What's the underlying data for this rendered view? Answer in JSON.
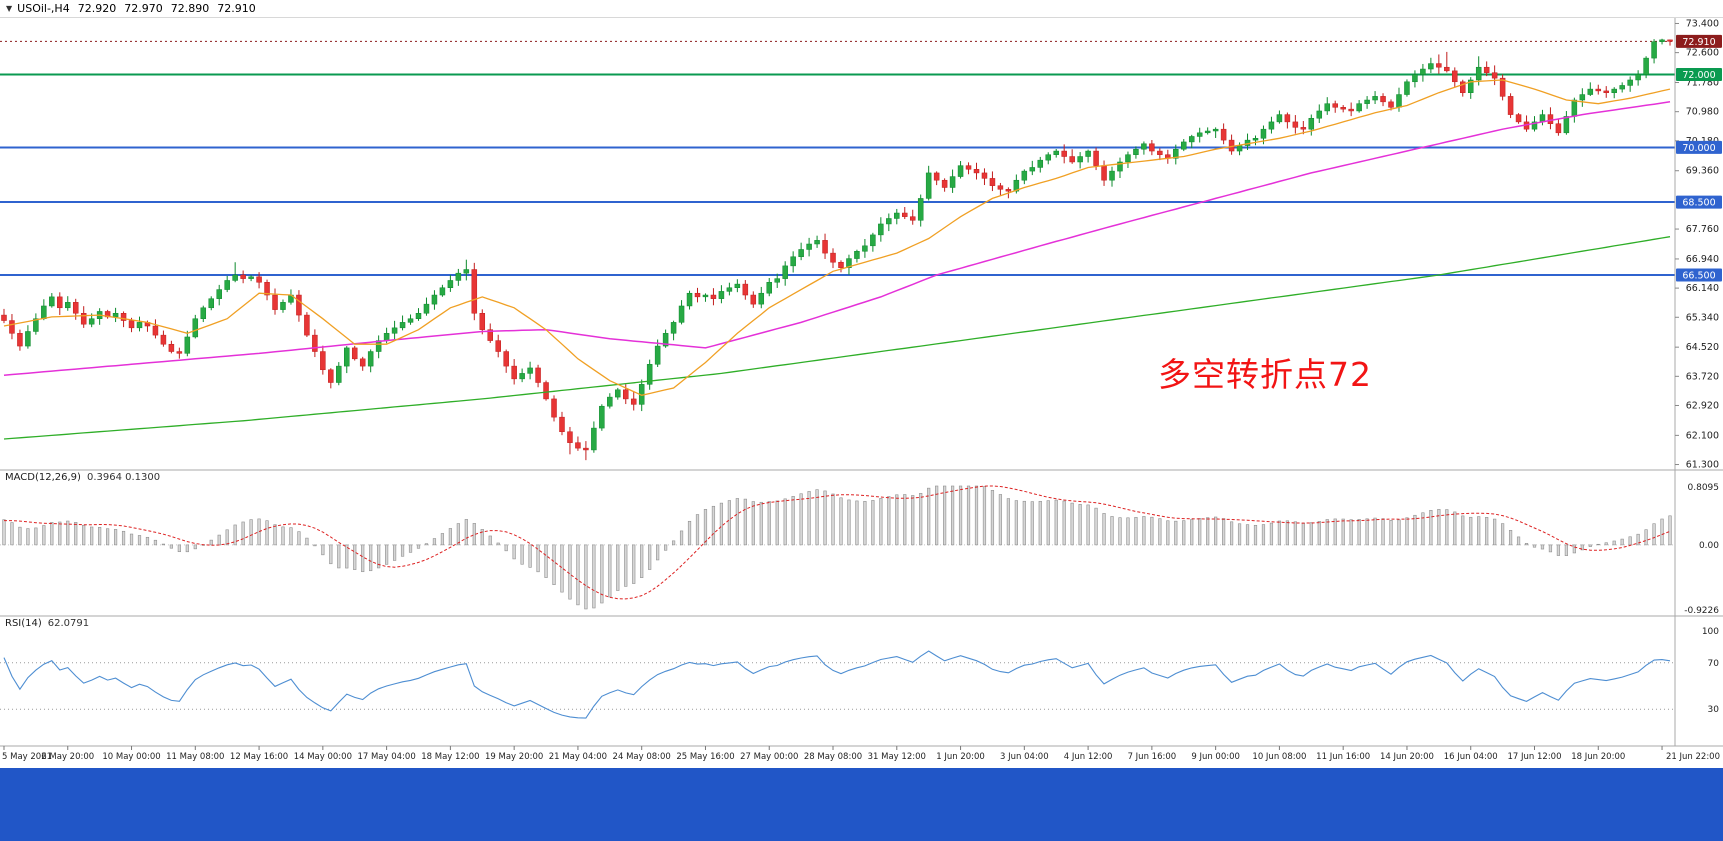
{
  "header": {
    "symbol": "USOil-,H4",
    "open": "72.920",
    "high": "72.970",
    "low": "72.890",
    "close": "72.910",
    "dropdown_icon": "▼"
  },
  "colors": {
    "up": "#27a944",
    "up_border": "#0c8a2c",
    "down": "#e73535",
    "down_border": "#c11d1d",
    "hline_blue": "#2f63cf",
    "hline_green": "#0a9a50",
    "badge_last": "#8c1c1c",
    "badge_blue": "#2f63cf",
    "badge_green": "#0a9a50",
    "macd_bar": "#d6d6d6",
    "macd_bar_border": "#8f8f8f",
    "macd_signal": "#dd2222",
    "rsi_line": "#4e8ed2",
    "level_dotted": "#9a9a9a",
    "separator": "#a8a8a8",
    "axis_text": "#1f1f1f",
    "bottom_bar": "#2156c7"
  },
  "chart_data": {
    "type": "candlestick",
    "title": "USOil-,H4",
    "timeframe": "H4",
    "last_price": "72.910",
    "bars_per_tick": 8,
    "x_tick_labels": [
      "5 May 2021",
      "6 May 20:00",
      "10 May 00:00",
      "11 May 08:00",
      "12 May 16:00",
      "14 May 00:00",
      "17 May 04:00",
      "18 May 12:00",
      "19 May 20:00",
      "21 May 04:00",
      "24 May 08:00",
      "25 May 16:00",
      "27 May 00:00",
      "28 May 08:00",
      "31 May 12:00",
      "1 Jun 20:00",
      "3 Jun 04:00",
      "4 Jun 12:00",
      "7 Jun 16:00",
      "9 Jun 00:00",
      "10 Jun 08:00",
      "11 Jun 16:00",
      "14 Jun 20:00",
      "16 Jun 04:00",
      "17 Jun 12:00",
      "18 Jun 20:00",
      "21 Jun 22:00"
    ],
    "price_axis_labels": [
      "73.400",
      "72.600",
      "71.780",
      "70.980",
      "70.180",
      "69.360",
      "67.760",
      "66.940",
      "66.140",
      "65.340",
      "64.520",
      "63.720",
      "62.920",
      "62.100",
      "61.300"
    ],
    "price_badges": [
      {
        "text": "72.910",
        "color": "#8c1c1c"
      },
      {
        "text": "72.000",
        "color": "#0a9a50"
      },
      {
        "text": "70.000",
        "color": "#2f63cf"
      },
      {
        "text": "68.500",
        "color": "#2f63cf"
      },
      {
        "text": "66.500",
        "color": "#2f63cf"
      }
    ],
    "hlines": [
      {
        "price": 72.0,
        "color": "#0a9a50",
        "width": 1.6
      },
      {
        "price": 70.0,
        "color": "#2f63cf",
        "width": 1.8
      },
      {
        "price": 68.5,
        "color": "#2f63cf",
        "width": 1.8
      },
      {
        "price": 66.5,
        "color": "#2f63cf",
        "width": 1.8
      }
    ],
    "first_open": 65.4,
    "closes": [
      65.25,
      64.9,
      64.55,
      64.95,
      65.3,
      65.65,
      65.9,
      65.6,
      65.75,
      65.45,
      65.15,
      65.3,
      65.5,
      65.35,
      65.45,
      65.25,
      65.05,
      65.2,
      65.1,
      64.85,
      64.6,
      64.4,
      64.35,
      64.8,
      65.3,
      65.6,
      65.85,
      66.1,
      66.35,
      66.5,
      66.4,
      66.45,
      66.3,
      65.95,
      65.55,
      65.75,
      65.95,
      65.4,
      64.85,
      64.4,
      63.9,
      63.55,
      64.0,
      64.5,
      64.2,
      64.0,
      64.4,
      64.7,
      64.9,
      65.05,
      65.2,
      65.3,
      65.45,
      65.7,
      65.95,
      66.15,
      66.35,
      66.55,
      66.65,
      65.45,
      65.0,
      64.7,
      64.4,
      64.0,
      63.65,
      63.8,
      63.95,
      63.55,
      63.1,
      62.6,
      62.2,
      61.9,
      61.75,
      61.7,
      62.3,
      62.9,
      63.15,
      63.35,
      63.1,
      62.95,
      63.5,
      64.05,
      64.55,
      64.9,
      65.2,
      65.65,
      66.0,
      65.9,
      65.95,
      65.85,
      66.05,
      66.15,
      66.25,
      65.95,
      65.7,
      66.0,
      66.3,
      66.4,
      66.75,
      67.0,
      67.2,
      67.35,
      67.45,
      67.1,
      66.85,
      66.7,
      66.95,
      67.15,
      67.3,
      67.6,
      67.9,
      68.05,
      68.2,
      68.1,
      68.0,
      68.6,
      69.3,
      69.1,
      68.9,
      69.2,
      69.5,
      69.4,
      69.3,
      69.15,
      68.95,
      68.85,
      68.8,
      69.1,
      69.35,
      69.45,
      69.65,
      69.8,
      69.9,
      69.75,
      69.6,
      69.75,
      69.9,
      69.5,
      69.1,
      69.35,
      69.6,
      69.8,
      69.95,
      70.1,
      69.9,
      69.8,
      69.7,
      69.95,
      70.15,
      70.3,
      70.4,
      70.45,
      70.5,
      70.2,
      69.9,
      70.05,
      70.2,
      70.25,
      70.5,
      70.7,
      70.9,
      70.7,
      70.55,
      70.5,
      70.8,
      71.0,
      71.2,
      71.1,
      71.05,
      71.0,
      71.2,
      71.3,
      71.4,
      71.25,
      71.1,
      71.45,
      71.8,
      72.0,
      72.15,
      72.3,
      72.2,
      72.1,
      71.8,
      71.5,
      71.85,
      72.2,
      72.05,
      71.9,
      71.4,
      70.9,
      70.7,
      70.5,
      70.7,
      70.9,
      70.65,
      70.4,
      70.85,
      71.3,
      71.45,
      71.6,
      71.55,
      71.5,
      71.6,
      71.7,
      71.85,
      72.0,
      72.45,
      72.9,
      72.95,
      72.91
    ],
    "extremes": {
      "29": {
        "high": 66.85
      },
      "58": {
        "high": 66.92
      },
      "71": {
        "low": 61.58
      },
      "73": {
        "low": 61.42
      },
      "180": {
        "high": 72.55
      },
      "181": {
        "high": 72.62
      },
      "185": {
        "high": 72.5
      },
      "207": {
        "high": 72.97
      },
      "208": {
        "high": 72.98
      },
      "209": {
        "high": 72.96
      }
    },
    "overlays": {
      "ma_green": {
        "color": "#2fae28",
        "points": [
          [
            0,
            62.0
          ],
          [
            30,
            62.5
          ],
          [
            60,
            63.1
          ],
          [
            90,
            63.8
          ],
          [
            120,
            64.7
          ],
          [
            150,
            65.6
          ],
          [
            180,
            66.5
          ],
          [
            209,
            67.55
          ]
        ]
      },
      "ma_magenta": {
        "color": "#e431d8",
        "points": [
          [
            0,
            63.75
          ],
          [
            16,
            64.05
          ],
          [
            32,
            64.35
          ],
          [
            48,
            64.7
          ],
          [
            60,
            64.95
          ],
          [
            68,
            65.0
          ],
          [
            76,
            64.75
          ],
          [
            88,
            64.5
          ],
          [
            100,
            65.2
          ],
          [
            110,
            65.9
          ],
          [
            117,
            66.5
          ],
          [
            130,
            67.3
          ],
          [
            140,
            67.9
          ],
          [
            152,
            68.6
          ],
          [
            164,
            69.3
          ],
          [
            176,
            69.9
          ],
          [
            188,
            70.5
          ],
          [
            198,
            70.9
          ],
          [
            209,
            71.25
          ]
        ]
      },
      "ma_orange": {
        "color": "#f0a024",
        "points": [
          [
            0,
            65.1
          ],
          [
            6,
            65.35
          ],
          [
            12,
            65.4
          ],
          [
            18,
            65.2
          ],
          [
            23,
            64.9
          ],
          [
            28,
            65.3
          ],
          [
            32,
            66.0
          ],
          [
            36,
            65.95
          ],
          [
            40,
            65.3
          ],
          [
            44,
            64.6
          ],
          [
            48,
            64.6
          ],
          [
            52,
            65.0
          ],
          [
            56,
            65.6
          ],
          [
            60,
            65.9
          ],
          [
            64,
            65.6
          ],
          [
            68,
            65.0
          ],
          [
            72,
            64.2
          ],
          [
            76,
            63.6
          ],
          [
            80,
            63.2
          ],
          [
            84,
            63.4
          ],
          [
            88,
            64.1
          ],
          [
            92,
            64.9
          ],
          [
            96,
            65.6
          ],
          [
            100,
            66.1
          ],
          [
            104,
            66.6
          ],
          [
            108,
            66.85
          ],
          [
            112,
            67.1
          ],
          [
            116,
            67.5
          ],
          [
            120,
            68.1
          ],
          [
            124,
            68.6
          ],
          [
            128,
            68.9
          ],
          [
            132,
            69.15
          ],
          [
            136,
            69.45
          ],
          [
            140,
            69.55
          ],
          [
            144,
            69.65
          ],
          [
            148,
            69.75
          ],
          [
            152,
            69.95
          ],
          [
            156,
            70.1
          ],
          [
            160,
            70.25
          ],
          [
            164,
            70.45
          ],
          [
            168,
            70.7
          ],
          [
            172,
            70.95
          ],
          [
            176,
            71.15
          ],
          [
            180,
            71.5
          ],
          [
            184,
            71.8
          ],
          [
            188,
            71.85
          ],
          [
            192,
            71.6
          ],
          [
            196,
            71.3
          ],
          [
            200,
            71.2
          ],
          [
            204,
            71.35
          ],
          [
            209,
            71.6
          ]
        ]
      }
    },
    "annotation": {
      "text": "多空转折点72",
      "color": "#f21414"
    },
    "macd": {
      "label": "MACD(12,26,9)",
      "values": "0.3964 0.1300",
      "params": [
        12,
        26,
        9
      ],
      "axis_labels": [
        "0.8095",
        "0.00",
        "-0.9226"
      ],
      "range": [
        -0.9226,
        0.8095
      ]
    },
    "rsi": {
      "label": "RSI(14)",
      "value": "62.0791",
      "period": 14,
      "levels": [
        70,
        30
      ],
      "axis_labels": [
        "100",
        "70",
        "30"
      ]
    }
  }
}
